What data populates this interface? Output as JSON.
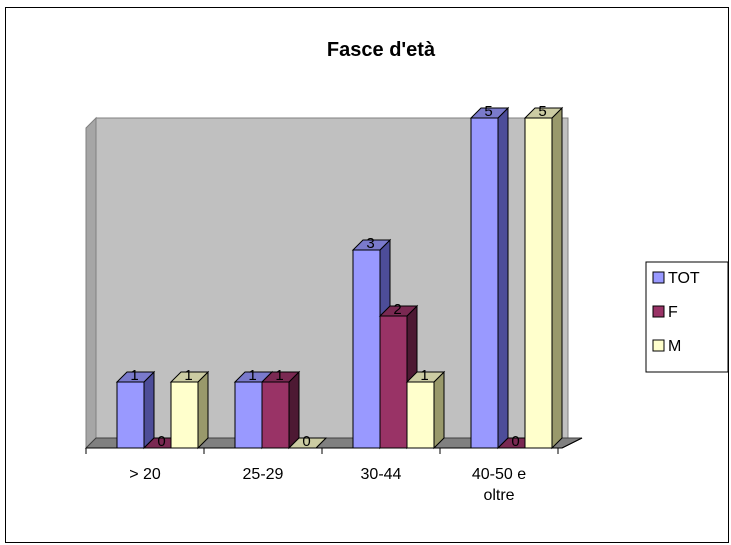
{
  "chart_data": {
    "type": "bar",
    "title": "Fasce d'età",
    "categories": [
      [
        "> 20"
      ],
      [
        "25-29"
      ],
      [
        "30-44"
      ],
      [
        "40-50 e",
        "oltre"
      ]
    ],
    "series": [
      {
        "name": "TOT",
        "values": [
          1,
          1,
          3,
          5
        ]
      },
      {
        "name": "F",
        "values": [
          0,
          1,
          2,
          0
        ]
      },
      {
        "name": "M",
        "values": [
          1,
          0,
          1,
          5
        ]
      }
    ],
    "ylim": [
      0,
      5
    ],
    "grid": false,
    "legend_position": "right",
    "style": "3d-clustered-column"
  },
  "colors": {
    "series": [
      "#9999ff",
      "#993366",
      "#ffffcc"
    ],
    "series_side": [
      "#4d4d99",
      "#4d1933",
      "#99996b"
    ],
    "series_top": [
      "#7a7acc",
      "#7a2952",
      "#cccca3"
    ],
    "plot_back": "#c0c0c0",
    "plot_wall": "#a6a6a6",
    "floor": "#808080"
  }
}
